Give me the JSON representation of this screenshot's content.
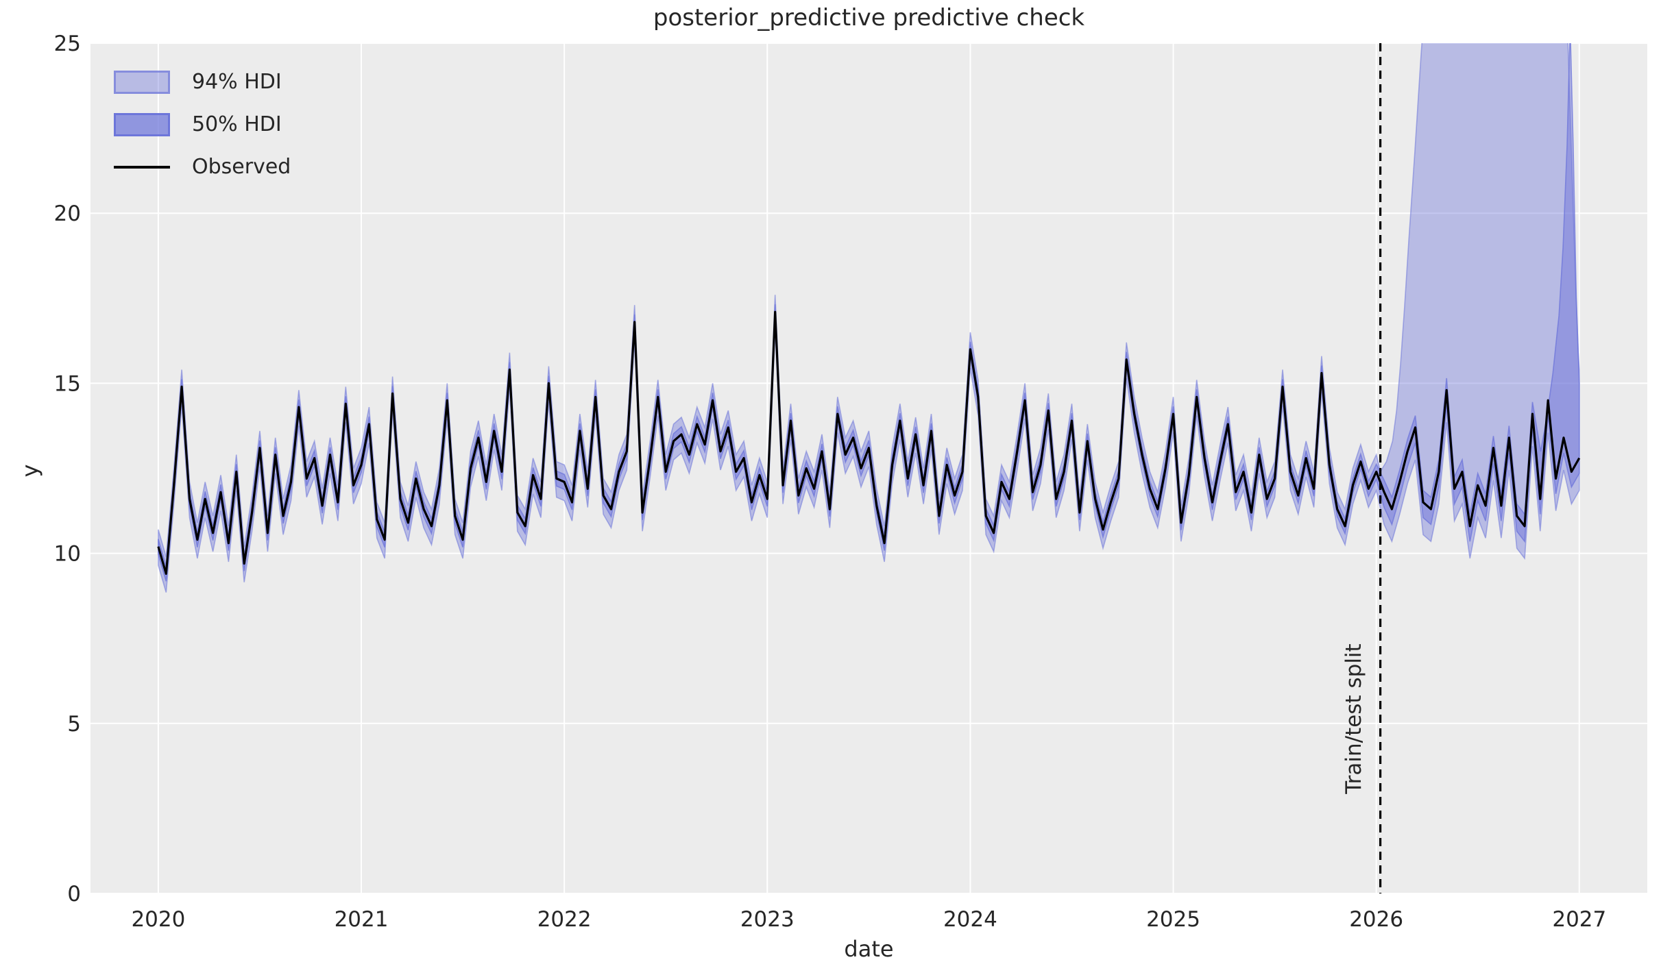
{
  "chart_data": {
    "type": "line",
    "title": "posterior_predictive predictive check",
    "xlabel": "date",
    "ylabel": "y",
    "xlim": [
      2019.666,
      2027.335
    ],
    "ylim": [
      0,
      25
    ],
    "xticks": [
      2020,
      2021,
      2022,
      2023,
      2024,
      2025,
      2026,
      2027
    ],
    "yticks": [
      0,
      5,
      10,
      15,
      20,
      25
    ],
    "grid": true,
    "legend_position": "upper-left",
    "legend": [
      {
        "label": "94% HDI",
        "swatch": "band-light"
      },
      {
        "label": "50% HDI",
        "swatch": "band-dark"
      },
      {
        "label": "Observed",
        "swatch": "line"
      }
    ],
    "split": {
      "x": 2026.02,
      "label": "Train/test split"
    },
    "observed": {
      "name": "Observed",
      "x_start": 2020.0,
      "x_step": 0.0384615,
      "y": [
        10.2,
        9.4,
        12.0,
        14.9,
        11.6,
        10.4,
        11.6,
        10.6,
        11.8,
        10.3,
        12.4,
        9.7,
        11.2,
        13.1,
        10.6,
        12.9,
        11.1,
        12.1,
        14.3,
        12.2,
        12.8,
        11.4,
        12.9,
        11.5,
        14.4,
        12.0,
        12.6,
        13.8,
        11.0,
        10.4,
        14.7,
        11.6,
        10.9,
        12.2,
        11.3,
        10.8,
        12.0,
        14.5,
        11.1,
        10.4,
        12.5,
        13.4,
        12.1,
        13.6,
        12.4,
        15.4,
        11.2,
        10.8,
        12.3,
        11.6,
        15.0,
        12.2,
        12.1,
        11.5,
        13.6,
        11.9,
        14.6,
        11.7,
        11.3,
        12.4,
        13.0,
        16.8,
        11.2,
        12.8,
        14.6,
        12.4,
        13.3,
        13.5,
        12.9,
        13.8,
        13.2,
        14.5,
        13.0,
        13.7,
        12.4,
        12.8,
        11.5,
        12.3,
        11.6,
        17.1,
        12.0,
        13.9,
        11.7,
        12.5,
        11.9,
        13.0,
        11.3,
        14.1,
        12.9,
        13.4,
        12.5,
        13.1,
        11.4,
        10.3,
        12.6,
        13.9,
        12.2,
        13.5,
        12.0,
        13.6,
        11.1,
        12.6,
        11.7,
        12.4,
        16.0,
        14.6,
        11.1,
        10.6,
        12.1,
        11.6,
        13.0,
        14.5,
        11.8,
        12.6,
        14.2,
        11.6,
        12.4,
        13.9,
        11.2,
        13.3,
        11.6,
        10.7,
        11.5,
        12.2,
        15.7,
        14.1,
        12.9,
        11.9,
        11.3,
        12.5,
        14.1,
        10.9,
        12.3,
        14.6,
        12.8,
        11.5,
        12.7,
        13.8,
        11.8,
        12.4,
        11.2,
        12.9,
        11.6,
        12.2,
        14.9,
        12.4,
        11.7,
        12.8,
        11.9,
        15.3,
        12.6,
        11.3,
        10.8,
        12.0,
        12.7,
        11.9,
        12.4,
        11.8,
        11.3,
        12.1,
        13.0,
        13.7,
        11.5,
        11.3,
        12.4,
        14.8,
        11.9,
        12.4,
        10.8,
        12.0,
        11.4,
        13.1,
        11.4,
        13.4,
        11.1,
        10.8,
        14.1,
        11.6,
        14.5,
        12.2,
        13.4,
        12.4,
        12.8
      ]
    },
    "hdi_94": {
      "name": "94% HDI",
      "train_upper_offset": 0.5,
      "train_lower_offset": 0.55,
      "test_lower_offset": 0.95,
      "test_upper": [
        [
          2026.02,
          12.4
        ],
        [
          2026.05,
          12.7
        ],
        [
          2026.08,
          13.3
        ],
        [
          2026.1,
          14.2
        ],
        [
          2026.12,
          15.6
        ],
        [
          2026.14,
          17.3
        ],
        [
          2026.16,
          19.2
        ],
        [
          2026.19,
          21.8
        ],
        [
          2026.22,
          24.6
        ],
        [
          2026.26,
          28.0
        ],
        [
          2026.5,
          34.0
        ],
        [
          2026.85,
          32.0
        ],
        [
          2026.91,
          28.0
        ],
        [
          2026.94,
          25.8
        ],
        [
          2026.96,
          22.0
        ],
        [
          2026.98,
          18.2
        ],
        [
          2026.995,
          15.9
        ],
        [
          2027.0,
          15.4
        ]
      ]
    },
    "hdi_50": {
      "name": "50% HDI",
      "train_upper_offset": 0.22,
      "train_lower_offset": 0.22,
      "test_upper_offset": 0.35,
      "test_lower_offset": 0.45,
      "test_upper_start": 2026.79,
      "test_upper": [
        [
          2026.81,
          13.0
        ],
        [
          2026.84,
          14.0
        ],
        [
          2026.87,
          15.3
        ],
        [
          2026.9,
          17.0
        ],
        [
          2026.92,
          19.0
        ],
        [
          2026.94,
          22.0
        ],
        [
          2026.955,
          25.5
        ],
        [
          2026.97,
          22.0
        ],
        [
          2026.985,
          17.5
        ],
        [
          2027.0,
          15.0
        ]
      ]
    },
    "colors": {
      "band_base": "#6c74d9",
      "observed": "#000000",
      "plot_background": "#ececec",
      "grid": "#ffffff",
      "split_line": "#000000",
      "text": "#262626",
      "figure_background": "#ffffff"
    }
  }
}
